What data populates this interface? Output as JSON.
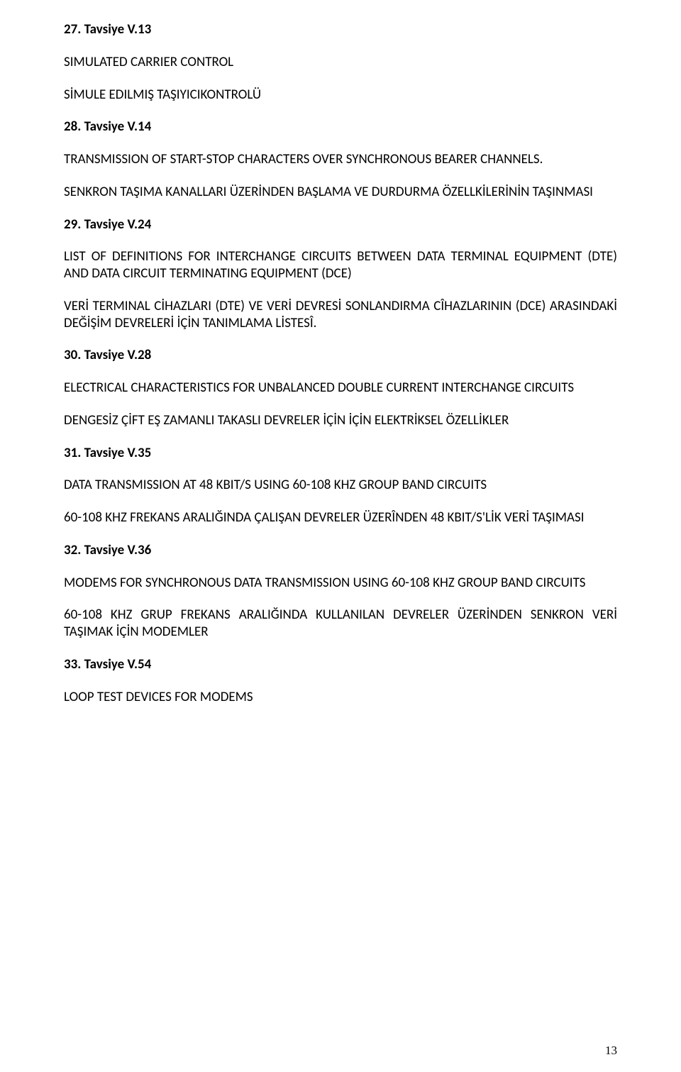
{
  "s27": {
    "heading": "27. Tavsiye V.13",
    "en": "SIMULATED CARRIER CONTROL",
    "tr": "SİMULE EDILMIŞ TAŞIYICIKONTROLÜ"
  },
  "s28": {
    "heading": "28. Tavsiye V.14",
    "en": "TRANSMISSION OF START-STOP CHARACTERS OVER SYNCHRONOUS BEARER CHANNELS.",
    "tr": "SENKRON TAŞIMA KANALLARI ÜZERİNDEN BAŞLAMA VE DURDURMA ÖZELLKİLERİNİN TAŞINMASI"
  },
  "s29": {
    "heading": "29. Tavsiye V.24",
    "en": "LIST OF DEFINITIONS FOR INTERCHANGE CIRCUITS BETWEEN DATA TERMINAL EQUIPMENT (DTE) AND DATA CIRCUIT TERMINATING EQUIPMENT (DCE)",
    "tr": "VERİ TERMINAL CİHAZLARI (DTE) VE VERİ DEVRESİ SONLANDIRMA CÎHAZLARININ (DCE) ARASINDAKİ DEĞİŞİM DEVRELERİ İÇİN TANIMLAMA LİSTESÎ."
  },
  "s30": {
    "heading": "30. Tavsiye V.28",
    "en": "ELECTRICAL CHARACTERISTICS FOR UNBALANCED DOUBLE CURRENT INTERCHANGE CIRCUITS",
    "tr": "DENGESİZ ÇİFT EŞ ZAMANLI TAKASLI DEVRELER İÇİN İÇİN ELEKTRİKSEL ÖZELLİKLER"
  },
  "s31": {
    "heading": "31. Tavsiye V.35",
    "en": "DATA TRANSMISSION AT 48 KBIT/S USING 60-108 KHZ GROUP BAND CIRCUITS",
    "tr": "60-108 KHZ FREKANS ARALIĞINDA ÇALIŞAN DEVRELER ÜZERÎNDEN 48 KBIT/S'LİK VERİ TAŞIMASI"
  },
  "s32": {
    "heading": "32. Tavsiye V.36",
    "en": "MODEMS FOR SYNCHRONOUS DATA TRANSMISSION USING 60-108 KHZ GROUP BAND CIRCUITS",
    "tr": "60-108 KHZ GRUP FREKANS ARALIĞINDA KULLANILAN DEVRELER ÜZERİNDEN SENKRON VERİ TAŞIMAK İÇİN MODEMLER"
  },
  "s33": {
    "heading": "33. Tavsiye V.54",
    "en": "LOOP TEST DEVICES FOR MODEMS"
  },
  "pageNumber": "13"
}
